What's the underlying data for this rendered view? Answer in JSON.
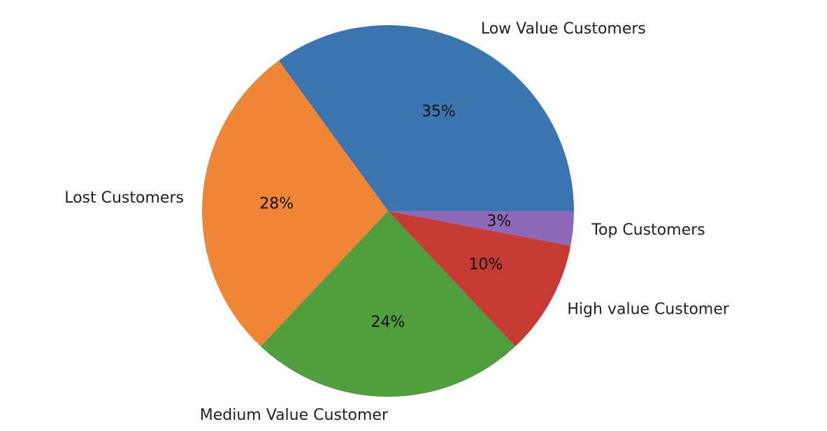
{
  "chart_data": {
    "type": "pie",
    "title": "",
    "start_angle_deg": 0,
    "direction": "counterclockwise",
    "slices": [
      {
        "label": "Low Value Customers",
        "value": 35.0,
        "pct_label": "35%",
        "color": "#3b75af"
      },
      {
        "label": "Lost Customers",
        "value": 28.0,
        "pct_label": "28%",
        "color": "#ef8636"
      },
      {
        "label": "Medium Value Customer",
        "value": 24.0,
        "pct_label": "24%",
        "color": "#519e3e"
      },
      {
        "label": "High value Customer",
        "value": 10.0,
        "pct_label": "10%",
        "color": "#c53a32"
      },
      {
        "label": "Top Customers",
        "value": 3.0,
        "pct_label": "3%",
        "color": "#8d69b8"
      }
    ]
  }
}
